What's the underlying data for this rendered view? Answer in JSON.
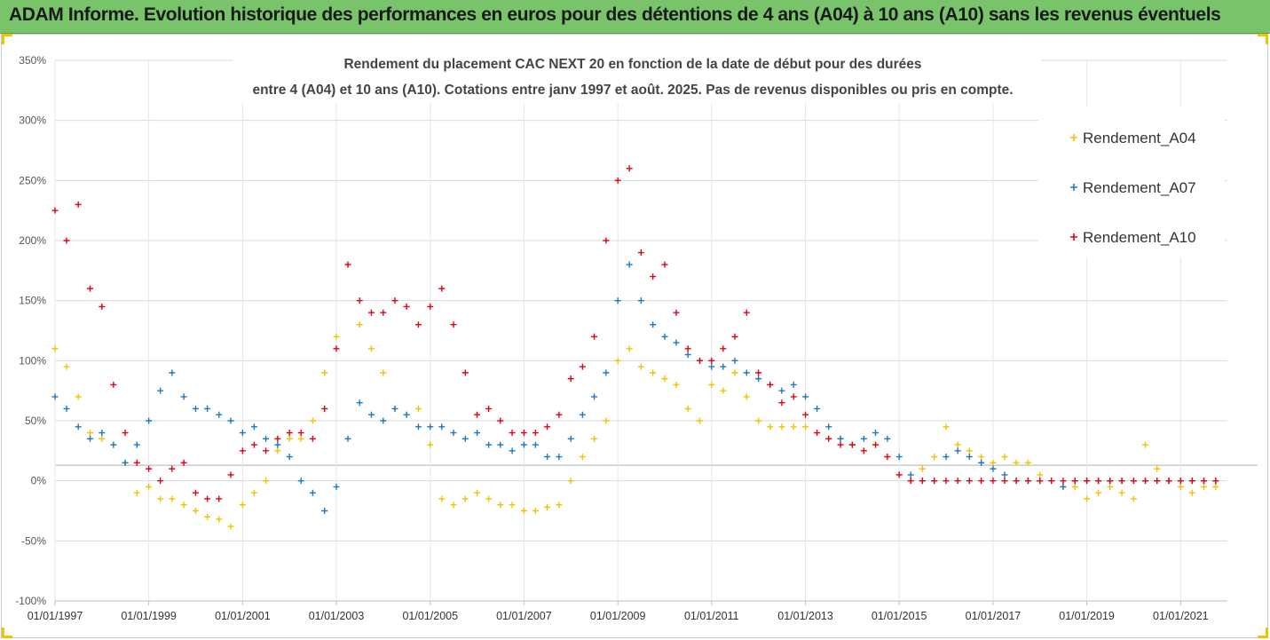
{
  "banner": {
    "title": "ADAM Informe. Evolution historique des performances en euros pour des détentions de 4 ans (A04) à 10 ans (A10) sans les revenus éventuels"
  },
  "colors": {
    "A04": "#f5c000",
    "A07": "#1f77c0",
    "A10": "#e3001b",
    "banner": "#79c46a"
  },
  "chart_data": {
    "type": "scatter",
    "title_lines": [
      "Rendement du placement CAC NEXT 20 en fonction de la date de début pour des durées",
      "entre 4 (A04) et 10 ans (A10). Cotations entre janv 1997 et août. 2025. Pas de revenus disponibles ou pris en compte."
    ],
    "xlabel": "",
    "ylabel": "",
    "x_range": [
      "01/01/1997",
      "31/12/2021"
    ],
    "ylim": [
      -1.0,
      3.5
    ],
    "y_ticks": [
      {
        "value": 3.5,
        "label": "350%"
      },
      {
        "value": 3.0,
        "label": "300%"
      },
      {
        "value": 2.5,
        "label": "250%"
      },
      {
        "value": 2.0,
        "label": "200%"
      },
      {
        "value": 1.5,
        "label": "150%"
      },
      {
        "value": 1.0,
        "label": "100%"
      },
      {
        "value": 0.5,
        "label": "50%"
      },
      {
        "value": 0.0,
        "label": "0%"
      },
      {
        "value": -0.5,
        "label": "-50%"
      },
      {
        "value": -1.0,
        "label": "-100%"
      }
    ],
    "x_ticks": [
      "01/01/1997",
      "01/01/1999",
      "01/01/2001",
      "01/01/2003",
      "01/01/2005",
      "01/01/2007",
      "01/01/2009",
      "01/01/2011",
      "01/01/2013",
      "01/01/2015",
      "01/01/2017",
      "01/01/2019",
      "01/01/2021"
    ],
    "grid": "horizontal",
    "legend_position": "right",
    "marker": "+",
    "series": [
      {
        "name": "Rendement_A04",
        "color": "#f5c000",
        "dates": [
          "01/01/1997",
          "01/04/1997",
          "01/07/1997",
          "01/10/1997",
          "01/01/1998",
          "01/04/1998",
          "01/07/1998",
          "01/10/1998",
          "01/01/1999",
          "01/04/1999",
          "01/07/1999",
          "01/10/1999",
          "01/01/2000",
          "01/04/2000",
          "01/07/2000",
          "01/10/2000",
          "01/01/2001",
          "01/04/2001",
          "01/07/2001",
          "01/10/2001",
          "01/01/2002",
          "01/04/2002",
          "01/07/2002",
          "01/10/2002",
          "01/01/2003",
          "01/04/2003",
          "01/07/2003",
          "01/10/2003",
          "01/01/2004",
          "01/04/2004",
          "01/07/2004",
          "01/10/2004",
          "01/01/2005",
          "01/04/2005",
          "01/07/2005",
          "01/10/2005",
          "01/01/2006",
          "01/04/2006",
          "01/07/2006",
          "01/10/2006",
          "01/01/2007",
          "01/04/2007",
          "01/07/2007",
          "01/10/2007",
          "01/01/2008",
          "01/04/2008",
          "01/07/2008",
          "01/10/2008",
          "01/01/2009",
          "01/04/2009",
          "01/07/2009",
          "01/10/2009",
          "01/01/2010",
          "01/04/2010",
          "01/07/2010",
          "01/10/2010",
          "01/01/2011",
          "01/04/2011",
          "01/07/2011",
          "01/10/2011",
          "01/01/2012",
          "01/04/2012",
          "01/07/2012",
          "01/10/2012",
          "01/01/2013",
          "01/04/2013",
          "01/07/2013",
          "01/10/2013",
          "01/01/2014",
          "01/04/2014",
          "01/07/2014",
          "01/10/2014",
          "01/01/2015",
          "01/04/2015",
          "01/07/2015",
          "01/10/2015",
          "01/01/2016",
          "01/04/2016",
          "01/07/2016",
          "01/10/2016",
          "01/01/2017",
          "01/04/2017",
          "01/07/2017",
          "01/10/2017",
          "01/01/2018",
          "01/04/2018",
          "01/07/2018",
          "01/10/2018",
          "01/01/2019",
          "01/04/2019",
          "01/07/2019",
          "01/10/2019",
          "01/01/2020",
          "01/04/2020",
          "01/07/2020",
          "01/10/2020",
          "01/01/2021",
          "01/04/2021",
          "01/07/2021",
          "01/10/2021"
        ],
        "values": [
          1.1,
          0.95,
          0.7,
          0.4,
          0.35,
          0.3,
          0.15,
          -0.1,
          -0.05,
          -0.15,
          -0.15,
          -0.2,
          -0.25,
          -0.3,
          -0.32,
          -0.38,
          -0.2,
          -0.1,
          0.0,
          0.25,
          0.35,
          0.35,
          0.5,
          0.9,
          1.2,
          1.8,
          1.3,
          1.1,
          0.9,
          0.6,
          0.55,
          0.6,
          0.3,
          -0.15,
          -0.2,
          -0.15,
          -0.1,
          -0.15,
          -0.2,
          -0.2,
          -0.25,
          -0.25,
          -0.22,
          -0.2,
          0.0,
          0.2,
          0.35,
          0.5,
          1.0,
          1.1,
          0.95,
          0.9,
          0.85,
          0.8,
          0.6,
          0.5,
          0.8,
          0.75,
          0.9,
          0.7,
          0.5,
          0.45,
          0.45,
          0.45,
          0.45,
          0.4,
          0.35,
          0.35,
          0.3,
          0.25,
          0.3,
          0.2,
          0.05,
          0.0,
          0.1,
          0.2,
          0.45,
          0.3,
          0.25,
          0.2,
          0.15,
          0.2,
          0.15,
          0.15,
          0.05,
          0.0,
          -0.05,
          -0.05,
          -0.15,
          -0.1,
          -0.05,
          -0.1,
          -0.15,
          0.3,
          0.1,
          0.0,
          -0.05,
          -0.1,
          -0.05,
          -0.05
        ]
      },
      {
        "name": "Rendement_A07",
        "color": "#1f77c0",
        "dates": [
          "01/01/1997",
          "01/04/1997",
          "01/07/1997",
          "01/10/1997",
          "01/01/1998",
          "01/04/1998",
          "01/07/1998",
          "01/10/1998",
          "01/01/1999",
          "01/04/1999",
          "01/07/1999",
          "01/10/1999",
          "01/01/2000",
          "01/04/2000",
          "01/07/2000",
          "01/10/2000",
          "01/01/2001",
          "01/04/2001",
          "01/07/2001",
          "01/10/2001",
          "01/01/2002",
          "01/04/2002",
          "01/07/2002",
          "01/10/2002",
          "01/01/2003",
          "01/04/2003",
          "01/07/2003",
          "01/10/2003",
          "01/01/2004",
          "01/04/2004",
          "01/07/2004",
          "01/10/2004",
          "01/01/2005",
          "01/04/2005",
          "01/07/2005",
          "01/10/2005",
          "01/01/2006",
          "01/04/2006",
          "01/07/2006",
          "01/10/2006",
          "01/01/2007",
          "01/04/2007",
          "01/07/2007",
          "01/10/2007",
          "01/01/2008",
          "01/04/2008",
          "01/07/2008",
          "01/10/2008",
          "01/01/2009",
          "01/04/2009",
          "01/07/2009",
          "01/10/2009",
          "01/01/2010",
          "01/04/2010",
          "01/07/2010",
          "01/10/2010",
          "01/01/2011",
          "01/04/2011",
          "01/07/2011",
          "01/10/2011",
          "01/01/2012",
          "01/04/2012",
          "01/07/2012",
          "01/10/2012",
          "01/01/2013",
          "01/04/2013",
          "01/07/2013",
          "01/10/2013",
          "01/01/2014",
          "01/04/2014",
          "01/07/2014",
          "01/10/2014",
          "01/01/2015",
          "01/04/2015",
          "01/07/2015",
          "01/10/2015",
          "01/01/2016",
          "01/04/2016",
          "01/07/2016",
          "01/10/2016",
          "01/01/2017",
          "01/04/2017",
          "01/07/2017",
          "01/10/2017",
          "01/01/2018",
          "01/04/2018",
          "01/07/2018",
          "01/10/2018",
          "01/01/2019",
          "01/04/2019",
          "01/07/2019",
          "01/10/2019",
          "01/01/2020",
          "01/04/2020",
          "01/07/2020",
          "01/10/2020",
          "01/01/2021",
          "01/04/2021",
          "01/07/2021",
          "01/10/2021"
        ],
        "values": [
          0.7,
          0.6,
          0.45,
          0.35,
          0.4,
          0.3,
          0.15,
          0.3,
          0.5,
          0.75,
          0.9,
          0.7,
          0.6,
          0.6,
          0.55,
          0.5,
          0.4,
          0.45,
          0.35,
          0.3,
          0.2,
          0.0,
          -0.1,
          -0.25,
          -0.05,
          0.35,
          0.65,
          0.55,
          0.5,
          0.6,
          0.55,
          0.45,
          0.45,
          0.45,
          0.4,
          0.35,
          0.4,
          0.3,
          0.3,
          0.25,
          0.3,
          0.3,
          0.2,
          0.2,
          0.35,
          0.55,
          0.7,
          0.9,
          1.5,
          1.8,
          1.5,
          1.3,
          1.2,
          1.15,
          1.05,
          1.0,
          0.95,
          0.95,
          1.0,
          0.9,
          0.85,
          0.8,
          0.75,
          0.8,
          0.7,
          0.6,
          0.45,
          0.35,
          0.3,
          0.35,
          0.4,
          0.35,
          0.2,
          0.05,
          0.0,
          0.0,
          0.2,
          0.25,
          0.2,
          0.15,
          0.1,
          0.05,
          0.0,
          0.0,
          0.0,
          0.0,
          -0.05,
          0.0,
          0.0,
          0.0,
          0.0,
          0.0,
          0.0,
          0.0,
          0.0,
          0.0,
          0.0,
          0.0,
          0.0,
          0.0
        ]
      },
      {
        "name": "Rendement_A10",
        "color": "#e3001b",
        "dates": [
          "01/01/1997",
          "01/04/1997",
          "01/07/1997",
          "01/10/1997",
          "01/01/1998",
          "01/04/1998",
          "01/07/1998",
          "01/10/1998",
          "01/01/1999",
          "01/04/1999",
          "01/07/1999",
          "01/10/1999",
          "01/01/2000",
          "01/04/2000",
          "01/07/2000",
          "01/10/2000",
          "01/01/2001",
          "01/04/2001",
          "01/07/2001",
          "01/10/2001",
          "01/01/2002",
          "01/04/2002",
          "01/07/2002",
          "01/10/2002",
          "01/01/2003",
          "01/04/2003",
          "01/07/2003",
          "01/10/2003",
          "01/01/2004",
          "01/04/2004",
          "01/07/2004",
          "01/10/2004",
          "01/01/2005",
          "01/04/2005",
          "01/07/2005",
          "01/10/2005",
          "01/01/2006",
          "01/04/2006",
          "01/07/2006",
          "01/10/2006",
          "01/01/2007",
          "01/04/2007",
          "01/07/2007",
          "01/10/2007",
          "01/01/2008",
          "01/04/2008",
          "01/07/2008",
          "01/10/2008",
          "01/01/2009",
          "01/04/2009",
          "01/07/2009",
          "01/10/2009",
          "01/01/2010",
          "01/04/2010",
          "01/07/2010",
          "01/10/2010",
          "01/01/2011",
          "01/04/2011",
          "01/07/2011",
          "01/10/2011",
          "01/01/2012",
          "01/04/2012",
          "01/07/2012",
          "01/10/2012",
          "01/01/2013",
          "01/04/2013",
          "01/07/2013",
          "01/10/2013",
          "01/01/2014",
          "01/04/2014",
          "01/07/2014",
          "01/10/2014",
          "01/01/2015",
          "01/04/2015",
          "01/07/2015",
          "01/10/2015",
          "01/01/2016",
          "01/04/2016",
          "01/07/2016",
          "01/10/2016",
          "01/01/2017",
          "01/04/2017",
          "01/07/2017",
          "01/10/2017",
          "01/01/2018",
          "01/04/2018",
          "01/07/2018",
          "01/10/2018",
          "01/01/2019",
          "01/04/2019",
          "01/07/2019",
          "01/10/2019",
          "01/01/2020",
          "01/04/2020",
          "01/07/2020",
          "01/10/2020",
          "01/01/2021",
          "01/04/2021",
          "01/07/2021",
          "01/10/2021"
        ],
        "values": [
          2.25,
          2.0,
          2.3,
          1.6,
          1.45,
          0.8,
          0.4,
          0.15,
          0.1,
          0.0,
          0.1,
          0.15,
          -0.1,
          -0.15,
          -0.15,
          0.05,
          0.25,
          0.3,
          0.25,
          0.35,
          0.4,
          0.4,
          0.35,
          0.6,
          1.1,
          1.8,
          1.5,
          1.4,
          1.4,
          1.5,
          1.45,
          1.3,
          1.45,
          1.6,
          1.3,
          0.9,
          0.55,
          0.6,
          0.5,
          0.4,
          0.4,
          0.4,
          0.45,
          0.55,
          0.85,
          0.95,
          1.2,
          2.0,
          2.5,
          2.6,
          1.9,
          1.7,
          1.8,
          1.4,
          1.1,
          1.0,
          1.0,
          1.1,
          1.2,
          1.4,
          0.9,
          0.8,
          0.65,
          0.7,
          0.55,
          0.4,
          0.35,
          0.3,
          0.3,
          0.25,
          0.3,
          0.2,
          0.05,
          0.0,
          0.0,
          0.0,
          0.0,
          0.0,
          0.0,
          0.0,
          0.0,
          0.0,
          0.0,
          0.0,
          0.0,
          0.0,
          0.0,
          0.0,
          0.0,
          0.0,
          0.0,
          0.0,
          0.0,
          0.0,
          0.0,
          0.0,
          0.0,
          0.0,
          0.0,
          0.0
        ]
      }
    ]
  }
}
